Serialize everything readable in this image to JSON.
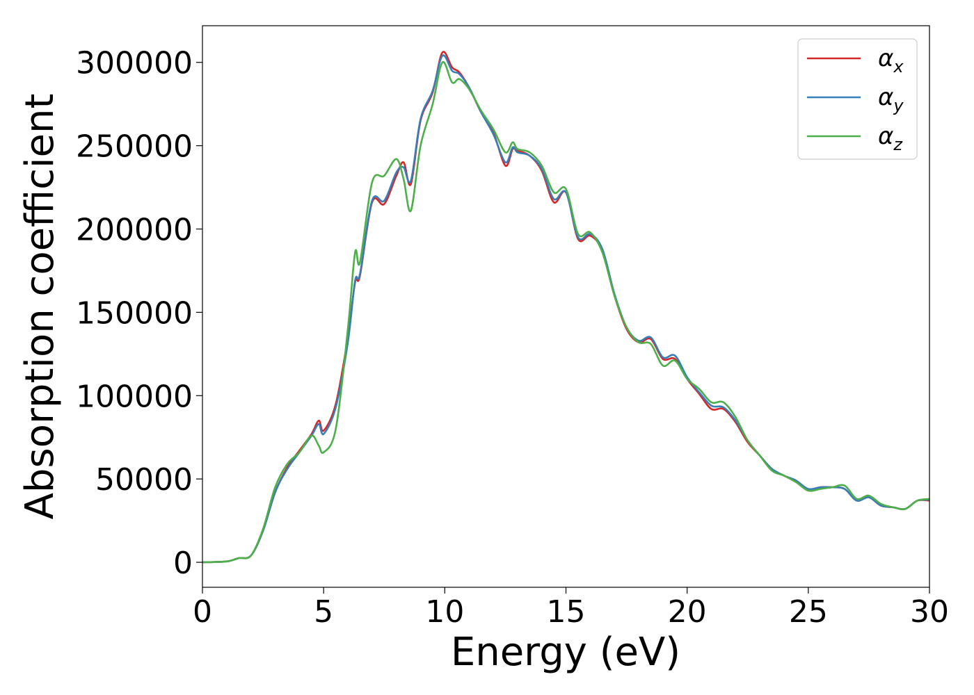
{
  "chart_data": {
    "type": "line",
    "xlabel": "Energy (eV)",
    "ylabel": "Absorption coefficient",
    "xlim": [
      0,
      30
    ],
    "ylim": [
      -15000,
      322000
    ],
    "xticks": [
      0,
      5,
      10,
      15,
      20,
      25,
      30
    ],
    "yticks": [
      0,
      50000,
      100000,
      150000,
      200000,
      250000,
      300000
    ],
    "grid": false,
    "legend_position": "top-right",
    "series": [
      {
        "name": "α",
        "sub": "x",
        "color": "#d62728",
        "x": [
          0,
          1,
          1.5,
          2,
          2.5,
          3,
          3.5,
          4,
          4.5,
          4.8,
          5,
          5.5,
          6,
          6.3,
          6.5,
          7,
          7.5,
          8,
          8.3,
          8.6,
          9,
          9.5,
          9.9,
          10.3,
          10.6,
          11,
          11.5,
          12,
          12.5,
          12.8,
          13,
          13.5,
          14,
          14.5,
          15,
          15.5,
          16,
          16.5,
          17,
          17.5,
          18,
          18.5,
          19,
          19.5,
          20,
          20.5,
          21,
          21.5,
          22,
          22.5,
          23,
          23.5,
          24,
          24.5,
          25,
          25.5,
          26,
          26.5,
          27,
          27.5,
          28,
          28.5,
          29,
          29.5,
          30
        ],
        "y": [
          0,
          500,
          2500,
          4000,
          19000,
          42000,
          57000,
          67000,
          77000,
          85000,
          79000,
          95000,
          135000,
          168000,
          172000,
          216000,
          215000,
          232000,
          240000,
          227000,
          265000,
          282000,
          306000,
          297000,
          294000,
          285000,
          270000,
          258000,
          238000,
          248000,
          247000,
          244000,
          235000,
          216000,
          222000,
          194000,
          196000,
          187000,
          160000,
          140000,
          132000,
          134000,
          122000,
          122000,
          110000,
          101000,
          92000,
          92000,
          84000,
          72000,
          64000,
          56000,
          52000,
          49000,
          43000,
          45000,
          45000,
          44000,
          37000,
          39000,
          34000,
          33000,
          32000,
          37000,
          37000
        ]
      },
      {
        "name": "α",
        "sub": "y",
        "color": "#377eb8",
        "x": [
          0,
          1,
          1.5,
          2,
          2.5,
          3,
          3.5,
          4,
          4.5,
          4.8,
          5,
          5.5,
          6,
          6.3,
          6.5,
          7,
          7.5,
          8,
          8.3,
          8.6,
          9,
          9.5,
          9.9,
          10.3,
          10.6,
          11,
          11.5,
          12,
          12.5,
          12.8,
          13,
          13.5,
          14,
          14.5,
          15,
          15.5,
          16,
          16.5,
          17,
          17.5,
          18,
          18.5,
          19,
          19.5,
          20,
          20.5,
          21,
          21.5,
          22,
          22.5,
          23,
          23.5,
          24,
          24.5,
          25,
          25.5,
          26,
          26.5,
          27,
          27.5,
          28,
          28.5,
          29,
          29.5,
          30
        ],
        "y": [
          0,
          500,
          2500,
          4000,
          19000,
          42000,
          56000,
          66000,
          76000,
          83000,
          77000,
          93000,
          132000,
          169000,
          173000,
          217000,
          217000,
          234000,
          237000,
          229000,
          266000,
          283000,
          304000,
          295000,
          293000,
          285000,
          270000,
          257000,
          240000,
          249000,
          246000,
          244000,
          236000,
          218000,
          222000,
          195000,
          197000,
          188000,
          161000,
          141000,
          133000,
          135000,
          123000,
          124000,
          111000,
          102000,
          94000,
          93000,
          85000,
          73000,
          64000,
          56000,
          52000,
          49000,
          44000,
          45000,
          45000,
          44000,
          37000,
          39000,
          34000,
          33000,
          32000,
          37000,
          37500
        ]
      },
      {
        "name": "α",
        "sub": "z",
        "color": "#4daf4a",
        "x": [
          0,
          1,
          1.5,
          2,
          2.5,
          3,
          3.5,
          4,
          4.5,
          4.8,
          5,
          5.5,
          6,
          6.3,
          6.5,
          7,
          7.5,
          8,
          8.3,
          8.6,
          9,
          9.5,
          9.9,
          10.3,
          10.6,
          11,
          11.5,
          12,
          12.5,
          12.8,
          13,
          13.5,
          14,
          14.5,
          15,
          15.5,
          16,
          16.5,
          17,
          17.5,
          18,
          18.5,
          19,
          19.5,
          20,
          20.5,
          21,
          21.5,
          22,
          22.5,
          23,
          23.5,
          24,
          24.5,
          25,
          25.5,
          26,
          26.5,
          27,
          27.5,
          28,
          28.5,
          29,
          29.5,
          30
        ],
        "y": [
          0,
          500,
          2500,
          4000,
          20000,
          45000,
          59000,
          66000,
          76000,
          70000,
          66000,
          80000,
          140000,
          186000,
          180000,
          228000,
          232000,
          242000,
          230000,
          211000,
          250000,
          275000,
          300000,
          288000,
          290000,
          284000,
          271000,
          260000,
          246000,
          252000,
          248000,
          246000,
          238000,
          222000,
          224000,
          197000,
          198000,
          186000,
          160000,
          141000,
          132000,
          131000,
          118000,
          121000,
          110000,
          104000,
          96000,
          96000,
          87000,
          73000,
          64000,
          55000,
          52000,
          48000,
          43000,
          44000,
          45000,
          46000,
          38000,
          40000,
          35000,
          33000,
          32000,
          37000,
          38000
        ]
      }
    ]
  }
}
